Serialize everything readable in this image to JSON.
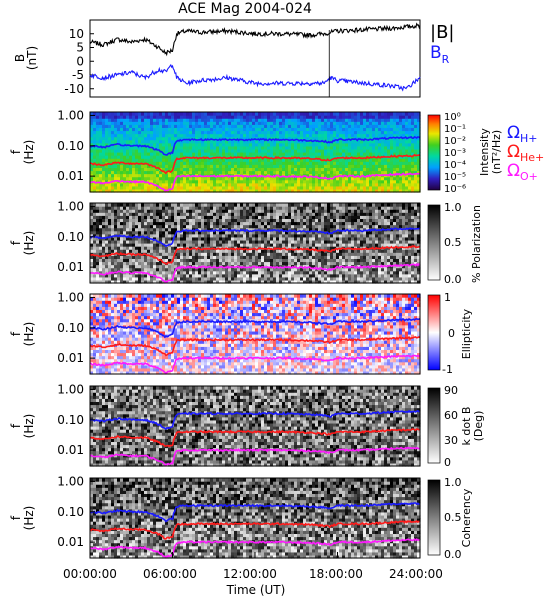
{
  "title": "ACE Mag 2004-024",
  "colors": {
    "B_total": "#000000",
    "B_R": "#1a1aff",
    "gyro_H": "#1a1aff",
    "gyro_He": "#ff1a1a",
    "gyro_O": "#ff1aff"
  },
  "legend_top": {
    "B_total_label": "|B|",
    "B_R_label": "B",
    "B_R_sub": "R"
  },
  "legend_gyro": {
    "H_label": "Ω",
    "H_sub": "H+",
    "He_label": "Ω",
    "He_sub": "He+",
    "O_label": "Ω",
    "O_sub": "O+"
  },
  "x_axis": {
    "label": "Time (UT)",
    "ticks": [
      "00:00:00",
      "06:00:00",
      "12:00:00",
      "18:00:00",
      "24:00:00"
    ]
  },
  "panel_labels": {
    "b_ylabel": "B",
    "b_yunit": "(nT)",
    "f_ylabel": "f",
    "f_yunit": "(Hz)",
    "f_ticks": [
      "1.00",
      "0.10",
      "0.01"
    ]
  },
  "colorbars": {
    "intensity": {
      "label": "Intensity",
      "unit": "(nT²/Hz)",
      "ticks": [
        "10⁰",
        "10⁻¹",
        "10⁻²",
        "10⁻³",
        "10⁻⁴",
        "10⁻⁵",
        "10⁻⁶"
      ]
    },
    "polarization": {
      "label": "% Polarization",
      "ticks": [
        "1.0",
        "0.5",
        "0.0"
      ]
    },
    "ellipticity": {
      "label": "Ellipticity",
      "ticks": [
        "1",
        "0",
        "-1"
      ]
    },
    "kdotb": {
      "label": "k dot B",
      "unit": "(Deg)",
      "ticks": [
        "90",
        "60",
        "30",
        "0"
      ]
    },
    "coherency": {
      "label": "Coherency",
      "ticks": [
        "1.0",
        "0.5",
        "0.0"
      ]
    }
  },
  "chart_data": [
    {
      "type": "line",
      "panel": "B",
      "ylabel": "B (nT)",
      "ylim": [
        -13,
        15
      ],
      "yticks": [
        10,
        5,
        0,
        -5,
        -10
      ],
      "xlim": [
        0,
        24
      ],
      "x_unit": "hours UT",
      "series": [
        {
          "name": "|B|",
          "x": [
            0,
            1,
            2,
            3,
            4,
            5,
            5.5,
            6,
            6.3,
            7,
            8,
            10,
            12,
            14,
            16,
            17,
            17.5,
            18,
            20,
            22,
            24
          ],
          "values": [
            7,
            6,
            8,
            7,
            8,
            5,
            3,
            4,
            10,
            11,
            10.5,
            11,
            10,
            10,
            9.5,
            10,
            10.5,
            11,
            11.5,
            12,
            13
          ]
        },
        {
          "name": "B_R",
          "x": [
            0,
            1,
            2,
            3,
            4,
            5,
            5.5,
            6,
            6.3,
            7,
            8,
            10,
            12,
            14,
            16,
            17,
            17.5,
            18,
            20,
            22,
            23,
            24
          ],
          "values": [
            -5,
            -6,
            -5,
            -4,
            -6,
            -3,
            -4,
            -1,
            -6,
            -8,
            -7,
            -6,
            -8,
            -8,
            -8,
            -8,
            -6,
            -7,
            -8,
            -9,
            -10,
            -6
          ]
        }
      ]
    },
    {
      "type": "heatmap",
      "panel": "Intensity spectrogram",
      "ylabel": "f (Hz)",
      "y_scale": "log",
      "ylim": [
        0.003,
        1.3
      ],
      "xlim": [
        0,
        24
      ],
      "colorbar": "Intensity (nT²/Hz)",
      "color_range": [
        "10⁻⁶",
        "10⁰"
      ]
    },
    {
      "type": "heatmap",
      "panel": "% Polarization",
      "ylabel": "f (Hz)",
      "y_scale": "log",
      "color_range": [
        0,
        1
      ]
    },
    {
      "type": "heatmap",
      "panel": "Ellipticity",
      "ylabel": "f (Hz)",
      "y_scale": "log",
      "color_range": [
        -1,
        1
      ]
    },
    {
      "type": "heatmap",
      "panel": "k dot B (Deg)",
      "ylabel": "f (Hz)",
      "y_scale": "log",
      "color_range": [
        0,
        90
      ]
    },
    {
      "type": "heatmap",
      "panel": "Coherency",
      "ylabel": "f (Hz)",
      "y_scale": "log",
      "color_range": [
        0,
        1
      ]
    },
    {
      "type": "line",
      "panel": "gyrofrequency overlays (all spectrogram panels)",
      "y_scale": "log",
      "x": [
        0,
        1,
        2,
        3,
        4,
        5,
        5.5,
        6,
        6.3,
        7,
        8,
        10,
        12,
        14,
        16,
        17,
        17.5,
        18,
        20,
        22,
        24
      ],
      "series": [
        {
          "name": "Ω_H+",
          "values": [
            0.1,
            0.09,
            0.11,
            0.1,
            0.1,
            0.07,
            0.05,
            0.06,
            0.15,
            0.16,
            0.16,
            0.16,
            0.16,
            0.16,
            0.15,
            0.14,
            0.13,
            0.16,
            0.16,
            0.18,
            0.19
          ]
        },
        {
          "name": "Ω_He+",
          "values": [
            0.026,
            0.023,
            0.028,
            0.026,
            0.026,
            0.018,
            0.013,
            0.015,
            0.038,
            0.04,
            0.04,
            0.04,
            0.04,
            0.04,
            0.038,
            0.035,
            0.033,
            0.04,
            0.04,
            0.045,
            0.048
          ]
        },
        {
          "name": "Ω_O+",
          "values": [
            0.0065,
            0.0058,
            0.007,
            0.0065,
            0.0065,
            0.0045,
            0.0033,
            0.0038,
            0.0095,
            0.01,
            0.01,
            0.01,
            0.01,
            0.01,
            0.0095,
            0.0088,
            0.0083,
            0.01,
            0.01,
            0.0113,
            0.012
          ]
        }
      ]
    }
  ]
}
